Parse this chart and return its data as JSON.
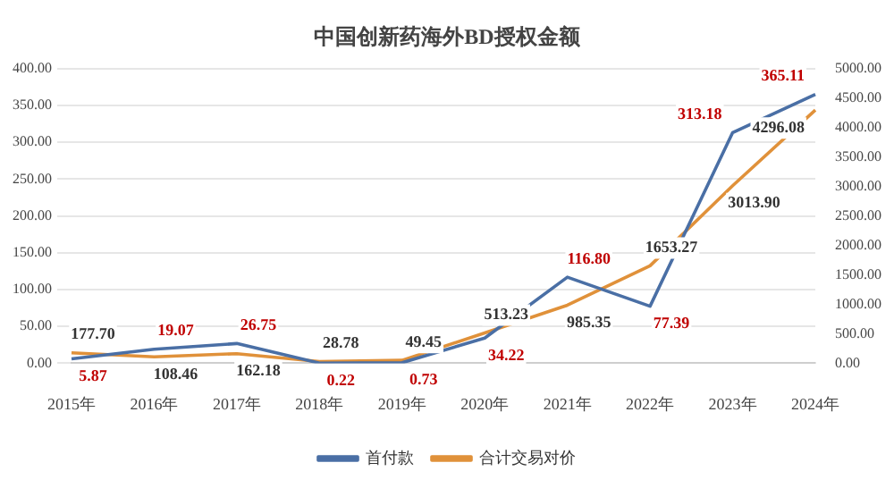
{
  "chart_data": {
    "type": "line",
    "title": "中国创新药海外BD授权金额",
    "categories": [
      "2015年",
      "2016年",
      "2017年",
      "2018年",
      "2019年",
      "2020年",
      "2021年",
      "2022年",
      "2023年",
      "2024年"
    ],
    "series": [
      {
        "name": "首付款",
        "color": "#4a6fa5",
        "values": [
          5.87,
          19.07,
          26.75,
          0.22,
          0.73,
          34.22,
          116.8,
          77.39,
          313.18,
          365.11
        ],
        "value_labels": [
          "5.87",
          "19.07",
          "26.75",
          "0.22",
          "0.73",
          "34.22",
          "116.80",
          "77.39",
          "313.18",
          "365.11"
        ]
      },
      {
        "name": "合计交易对价",
        "color": "#e0913a",
        "axis": "y2",
        "values": [
          177.7,
          108.46,
          162.18,
          28.78,
          49.45,
          513.23,
          985.35,
          1653.27,
          3013.9,
          4296.08
        ],
        "value_labels": [
          "177.70",
          "108.46",
          "162.18",
          "28.78",
          "49.45",
          "513.23",
          "985.35",
          "1653.27",
          "3013.90",
          "4296.08"
        ]
      }
    ],
    "ylim": [
      0,
      400
    ],
    "yticks": [
      {
        "value": 0,
        "label": "0.00"
      },
      {
        "value": 50,
        "label": "50.00"
      },
      {
        "value": 100,
        "label": "100.00"
      },
      {
        "value": 150,
        "label": "150.00"
      },
      {
        "value": 200,
        "label": "200.00"
      },
      {
        "value": 250,
        "label": "250.00"
      },
      {
        "value": 300,
        "label": "300.00"
      },
      {
        "value": 350,
        "label": "350.00"
      },
      {
        "value": 400,
        "label": "400.00"
      }
    ],
    "y2lim": [
      0,
      5000
    ],
    "y2ticks": [
      {
        "value": 0,
        "label": "0.00"
      },
      {
        "value": 500,
        "label": "500.00"
      },
      {
        "value": 1000,
        "label": "1000.00"
      },
      {
        "value": 1500,
        "label": "1500.00"
      },
      {
        "value": 2000,
        "label": "2000.00"
      },
      {
        "value": 2500,
        "label": "2500.00"
      },
      {
        "value": 3000,
        "label": "3000.00"
      },
      {
        "value": 3500,
        "label": "3500.00"
      },
      {
        "value": 4000,
        "label": "4000.00"
      },
      {
        "value": 4500,
        "label": "4500.00"
      },
      {
        "value": 5000,
        "label": "5000.00"
      }
    ],
    "grid": "y",
    "legend": "bottom",
    "marker": "none",
    "line_style": "solid"
  }
}
